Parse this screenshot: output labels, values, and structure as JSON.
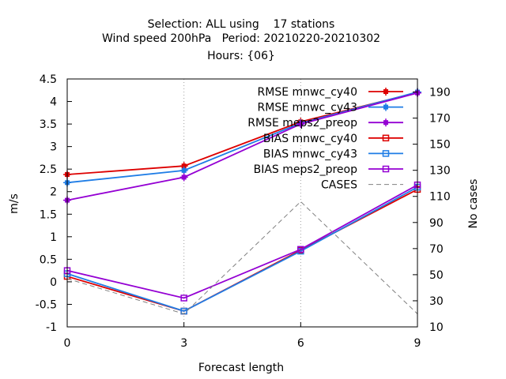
{
  "chart_data": {
    "type": "line",
    "title_lines": [
      "Selection: ALL using    17 stations",
      "Wind speed 200hPa   Period: 20210220-20210302",
      "Hours: {06}"
    ],
    "xlabel": "Forecast length",
    "ylabel": "m/s",
    "y2label": "No cases",
    "x": [
      0,
      3,
      6,
      9
    ],
    "xlim": [
      0,
      9
    ],
    "ylim": [
      -1,
      4.5
    ],
    "y2lim": [
      10,
      200
    ],
    "x_ticks": [
      "0",
      "3",
      "6",
      "9"
    ],
    "y_ticks": [
      "-1",
      "-0.5",
      "0",
      "0.5",
      "1",
      "1.5",
      "2",
      "2.5",
      "3",
      "3.5",
      "4",
      "4.5"
    ],
    "y2_ticks": [
      "10",
      "30",
      "50",
      "70",
      "90",
      "110",
      "130",
      "150",
      "170",
      "190"
    ],
    "grid": true,
    "legend_position": "top-right",
    "series": [
      {
        "name": "RMSE mnwc_cy40",
        "color": "#dd0000",
        "marker": "plus-filled",
        "axis": "y",
        "values": [
          2.38,
          2.57,
          3.55,
          4.2
        ]
      },
      {
        "name": "RMSE mnwc_cy43",
        "color": "#1f7de6",
        "marker": "plus-filled",
        "axis": "y",
        "values": [
          2.2,
          2.47,
          3.52,
          4.21
        ]
      },
      {
        "name": "RMSE meps2_preop",
        "color": "#9400d3",
        "marker": "plus-filled",
        "axis": "y",
        "values": [
          1.81,
          2.32,
          3.5,
          4.19
        ]
      },
      {
        "name": "BIAS mnwc_cy40",
        "color": "#dd0000",
        "marker": "square-open",
        "axis": "y",
        "values": [
          0.12,
          -0.65,
          0.7,
          2.05
        ]
      },
      {
        "name": "BIAS mnwc_cy43",
        "color": "#1f7de6",
        "marker": "square-open",
        "axis": "y",
        "values": [
          0.18,
          -0.65,
          0.68,
          2.1
        ]
      },
      {
        "name": "BIAS meps2_preop",
        "color": "#9400d3",
        "marker": "square-open",
        "axis": "y",
        "values": [
          0.25,
          -0.36,
          0.72,
          2.15
        ]
      },
      {
        "name": "CASES",
        "color": "#808080",
        "marker": "none",
        "dashed": true,
        "axis": "y2",
        "values": [
          47,
          20,
          106,
          20
        ]
      }
    ]
  }
}
